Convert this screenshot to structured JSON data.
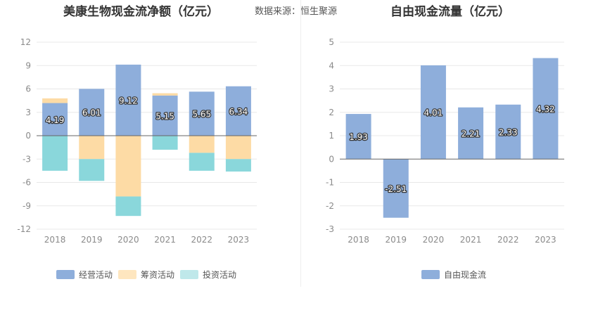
{
  "source_label": "数据来源：恒生聚源",
  "chart_data": [
    {
      "type": "bar",
      "stacked": true,
      "title": "美康生物现金流净额（亿元）",
      "categories": [
        "2018",
        "2019",
        "2020",
        "2021",
        "2022",
        "2023"
      ],
      "ylim": [
        -12,
        12
      ],
      "yticks": [
        12,
        9,
        6,
        3,
        0,
        -3,
        -6,
        -9,
        -12
      ],
      "series": [
        {
          "name": "经营活动",
          "color": "#8eaedb",
          "values": [
            4.19,
            6.01,
            9.12,
            5.15,
            5.65,
            6.34
          ],
          "labels": [
            "4.19",
            "6.01",
            "9.12",
            "5.15",
            "5.65",
            "6.34"
          ]
        },
        {
          "name": "筹资活动",
          "color": "#fddba5",
          "values": [
            0.6,
            -3.0,
            -7.8,
            0.3,
            -2.2,
            -3.0
          ]
        },
        {
          "name": "投资活动",
          "color": "#8ad7db",
          "values": [
            -4.5,
            -2.8,
            -2.5,
            -1.8,
            -2.3,
            -1.6
          ]
        }
      ],
      "legend": [
        {
          "name": "经营活动",
          "color": "#8eaedb"
        },
        {
          "name": "筹资活动",
          "color": "#fee6bf"
        },
        {
          "name": "投资活动",
          "color": "#bfe8ea"
        }
      ]
    },
    {
      "type": "bar",
      "title": "自由现金流量（亿元）",
      "categories": [
        "2018",
        "2019",
        "2020",
        "2021",
        "2022",
        "2023"
      ],
      "ylim": [
        -3,
        5
      ],
      "yticks": [
        5,
        4,
        3,
        2,
        1,
        0,
        -1,
        -2,
        -3
      ],
      "series": [
        {
          "name": "自由现金流",
          "color": "#8eaedb",
          "values": [
            1.93,
            -2.51,
            4.01,
            2.21,
            2.33,
            4.32
          ],
          "labels": [
            "1.93",
            "-2.51",
            "4.01",
            "2.21",
            "2.33",
            "4.32"
          ]
        }
      ],
      "legend": [
        {
          "name": "自由现金流",
          "color": "#8eaedb"
        }
      ]
    }
  ]
}
